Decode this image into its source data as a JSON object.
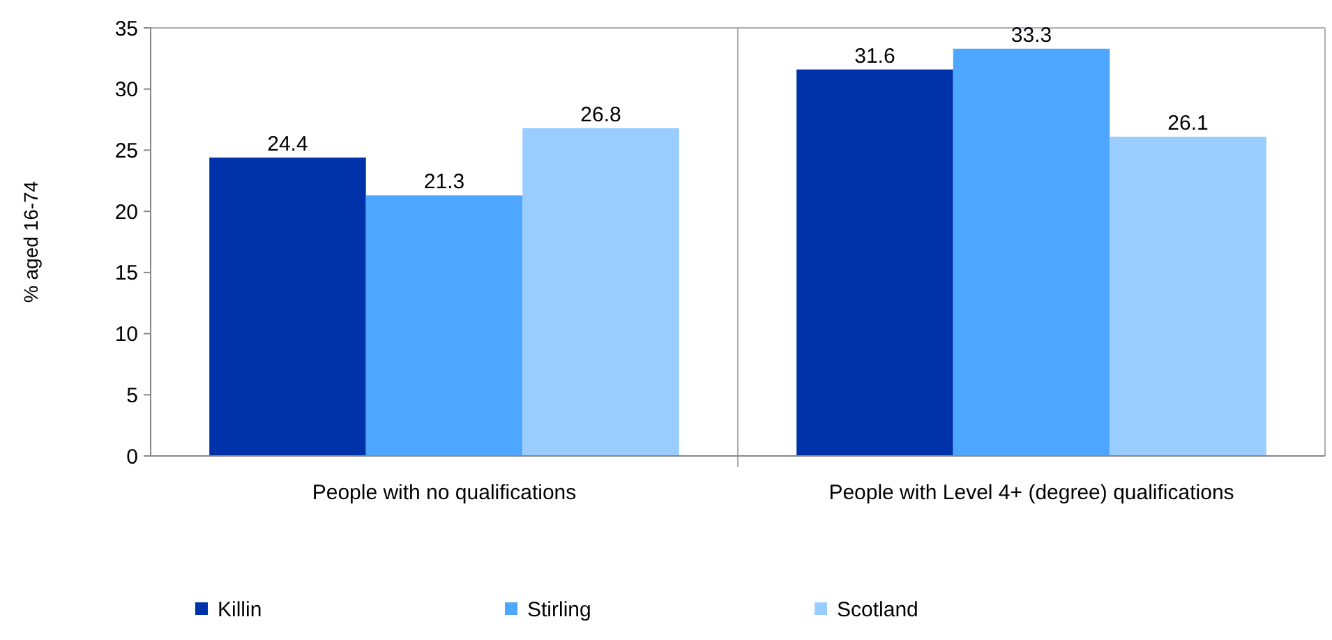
{
  "chart_data": {
    "type": "bar",
    "ylabel": "% aged 16-74",
    "categories": [
      "People with no qualifications",
      "People with Level 4+ (degree) qualifications"
    ],
    "series": [
      {
        "name": "Killin",
        "color": "#0033aa",
        "values": [
          24.4,
          31.6
        ]
      },
      {
        "name": "Stirling",
        "color": "#4da6ff",
        "values": [
          21.3,
          33.3
        ]
      },
      {
        "name": "Scotland",
        "color": "#99ccff",
        "values": [
          26.8,
          26.1
        ]
      }
    ],
    "ylim": [
      0,
      35
    ],
    "yticks": [
      0,
      5,
      10,
      15,
      20,
      25,
      30,
      35
    ],
    "grid": false,
    "data_labels": true,
    "legend": "bottom"
  }
}
